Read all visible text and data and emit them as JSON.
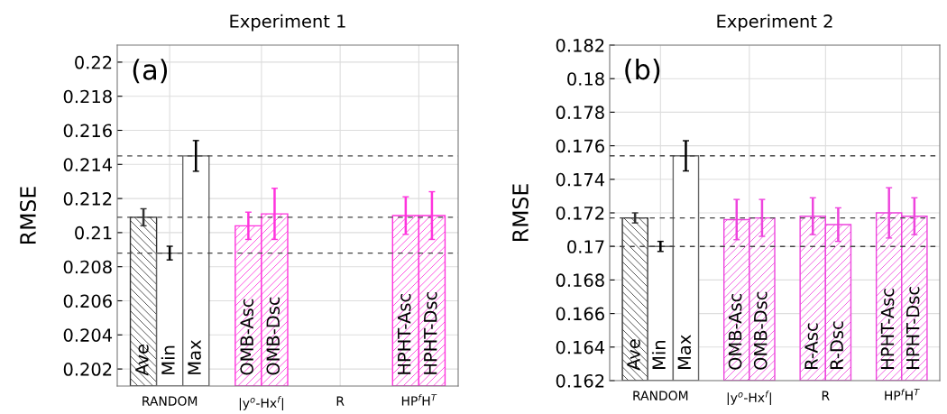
{
  "chart_data": [
    {
      "type": "bar",
      "title": "Experiment 1",
      "ylabel": "RMSE",
      "categories": [
        "RANDOM",
        "|y$^{o}$-Hx$^{f}$|",
        "R",
        "HP$^{f}$H$^{T}$"
      ],
      "series": [
        {
          "name": "Ave",
          "color": "#333333",
          "values": [
            0.2109,
            null,
            null,
            null
          ],
          "errors": [
            0.0005,
            null,
            null,
            null
          ]
        },
        {
          "name": "Min",
          "color": "#ffffff",
          "values": [
            0.2088,
            null,
            null,
            null
          ],
          "errors": [
            0.0004,
            null,
            null,
            null
          ]
        },
        {
          "name": "Max",
          "color": "#ffffff",
          "values": [
            0.2145,
            null,
            null,
            null
          ],
          "errors": [
            0.0009,
            null,
            null,
            null
          ]
        },
        {
          "name": "OMB-Asc",
          "color": "#ff33dd",
          "values": [
            null,
            0.2104,
            null,
            null
          ],
          "errors": [
            null,
            0.0008,
            null,
            null
          ]
        },
        {
          "name": "OMB-Dsc",
          "color": "#ff33dd",
          "values": [
            null,
            0.2111,
            null,
            null
          ],
          "errors": [
            null,
            0.0015,
            null,
            null
          ]
        },
        {
          "name": "HPHT-Asc",
          "color": "#ff33dd",
          "values": [
            null,
            null,
            null,
            0.211
          ],
          "errors": [
            null,
            null,
            null,
            0.0011
          ]
        },
        {
          "name": "HPHT-Dsc",
          "color": "#ff33dd",
          "values": [
            null,
            null,
            null,
            0.211
          ],
          "errors": [
            null,
            null,
            null,
            0.0014
          ]
        }
      ],
      "ylim": [
        0.201,
        0.221
      ],
      "yticks": [
        0.202,
        0.204,
        0.206,
        0.208,
        0.21,
        0.212,
        0.214,
        0.216,
        0.218,
        0.22
      ],
      "ref_lines": [
        {
          "axis": "y",
          "value": 0.2145,
          "color": "#444444",
          "line_style": "dashed"
        },
        {
          "axis": "y",
          "value": 0.2109,
          "color": "#444444",
          "line_style": "dashed"
        },
        {
          "axis": "y",
          "value": 0.2088,
          "color": "#444444",
          "line_style": "dashed"
        }
      ],
      "annotations": [
        "(a)"
      ],
      "grid": true
    },
    {
      "type": "bar",
      "title": "Experiment 2",
      "ylabel": "RMSE",
      "categories": [
        "RANDOM",
        "|y$^{o}$-Hx$^{f}$|",
        "R",
        "HP$^{f}$H$^{T}$"
      ],
      "series": [
        {
          "name": "Ave",
          "color": "#333333",
          "values": [
            0.1717,
            null,
            null,
            null
          ],
          "errors": [
            0.0003,
            null,
            null,
            null
          ]
        },
        {
          "name": "Min",
          "color": "#ffffff",
          "values": [
            0.17,
            null,
            null,
            null
          ],
          "errors": [
            0.0003,
            null,
            null,
            null
          ]
        },
        {
          "name": "Max",
          "color": "#ffffff",
          "values": [
            0.1754,
            null,
            null,
            null
          ],
          "errors": [
            0.0009,
            null,
            null,
            null
          ]
        },
        {
          "name": "OMB-Asc",
          "color": "#ee44dd",
          "values": [
            null,
            0.1716,
            null,
            null
          ],
          "errors": [
            null,
            0.0012,
            null,
            null
          ]
        },
        {
          "name": "OMB-Dsc",
          "color": "#ee44dd",
          "values": [
            null,
            0.1717,
            null,
            null
          ],
          "errors": [
            null,
            0.0011,
            null,
            null
          ]
        },
        {
          "name": "R-Asc",
          "color": "#ee44dd",
          "values": [
            null,
            null,
            0.1718,
            null
          ],
          "errors": [
            null,
            null,
            0.0011,
            null
          ]
        },
        {
          "name": "R-Dsc",
          "color": "#ee44dd",
          "values": [
            null,
            null,
            0.1713,
            null
          ],
          "errors": [
            null,
            null,
            0.001,
            null
          ]
        },
        {
          "name": "HPHT-Asc",
          "color": "#ee44dd",
          "values": [
            null,
            null,
            null,
            0.172
          ],
          "errors": [
            null,
            null,
            null,
            0.0015
          ]
        },
        {
          "name": "HPHT-Dsc",
          "color": "#ee44dd",
          "values": [
            null,
            null,
            null,
            0.1718
          ],
          "errors": [
            null,
            null,
            null,
            0.0011
          ]
        }
      ],
      "ylim": [
        0.162,
        0.182
      ],
      "yticks": [
        0.162,
        0.164,
        0.166,
        0.168,
        0.17,
        0.172,
        0.174,
        0.176,
        0.178,
        0.18,
        0.182
      ],
      "ref_lines": [
        {
          "axis": "y",
          "value": 0.1754,
          "color": "#444444",
          "line_style": "dashed"
        },
        {
          "axis": "y",
          "value": 0.1717,
          "color": "#444444",
          "line_style": "dashed"
        },
        {
          "axis": "y",
          "value": 0.17,
          "color": "#444444",
          "line_style": "dashed"
        }
      ],
      "annotations": [
        "(b)"
      ],
      "grid": true
    }
  ]
}
